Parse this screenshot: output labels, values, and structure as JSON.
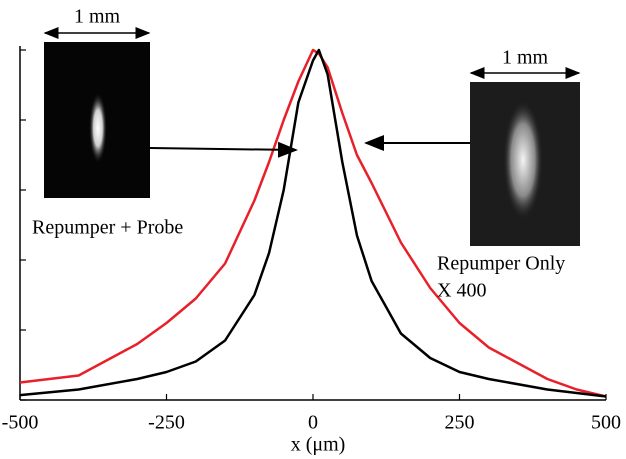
{
  "chart_data": {
    "type": "line",
    "xlabel": "x (μm)",
    "x": [
      -500,
      -400,
      -300,
      -250,
      -200,
      -150,
      -100,
      -75,
      -50,
      -25,
      0,
      10,
      25,
      50,
      75,
      100,
      150,
      200,
      250,
      300,
      400,
      450,
      500
    ],
    "series": [
      {
        "color": "#000000",
        "values": [
          0.014,
          0.03,
          0.06,
          0.08,
          0.11,
          0.17,
          0.3,
          0.42,
          0.6,
          0.85,
          0.97,
          1.0,
          0.93,
          0.68,
          0.47,
          0.34,
          0.19,
          0.12,
          0.08,
          0.06,
          0.03,
          0.02,
          0.01
        ]
      },
      {
        "color": "#e8202a",
        "values": [
          0.05,
          0.07,
          0.16,
          0.22,
          0.29,
          0.39,
          0.57,
          0.68,
          0.8,
          0.91,
          1.0,
          0.99,
          0.95,
          0.82,
          0.7,
          0.62,
          0.45,
          0.32,
          0.22,
          0.15,
          0.06,
          0.03,
          0.01
        ]
      }
    ],
    "xlim": [
      -500,
      500
    ],
    "xticks": [
      -500,
      -250,
      0,
      250,
      500
    ],
    "ylim": [
      0,
      1
    ],
    "yticks": [
      0,
      0.2,
      0.4,
      0.6,
      0.8,
      1.0
    ],
    "annotations": [
      "1 mm",
      "1 mm",
      "Repumper + Probe",
      "Repumper Only",
      "X 400"
    ]
  }
}
